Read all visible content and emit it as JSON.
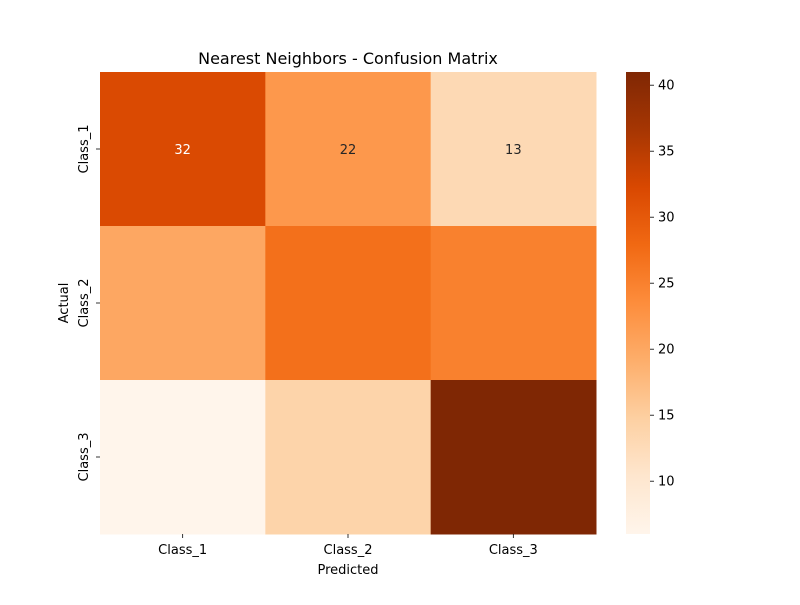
{
  "chart_data": {
    "type": "heatmap",
    "title": "Nearest Neighbors - Confusion Matrix",
    "xlabel": "Predicted",
    "ylabel": "Actual",
    "x_categories": [
      "Class_1",
      "Class_2",
      "Class_3"
    ],
    "y_categories": [
      "Class_1",
      "Class_2",
      "Class_3"
    ],
    "values": [
      [
        32,
        22,
        13
      ],
      [
        20,
        27,
        25
      ],
      [
        6,
        14,
        41
      ]
    ],
    "cell_labels": [
      [
        "32",
        "22",
        "13"
      ],
      [
        "",
        "",
        ""
      ],
      [
        "",
        "",
        ""
      ]
    ],
    "colormap": "Oranges",
    "vmin": 6,
    "vmax": 41,
    "colorbar_ticks": [
      10,
      15,
      20,
      25,
      30,
      35,
      40
    ],
    "grid": false,
    "colors": {
      "low": "#fff5eb",
      "high": "#7f2704"
    }
  }
}
